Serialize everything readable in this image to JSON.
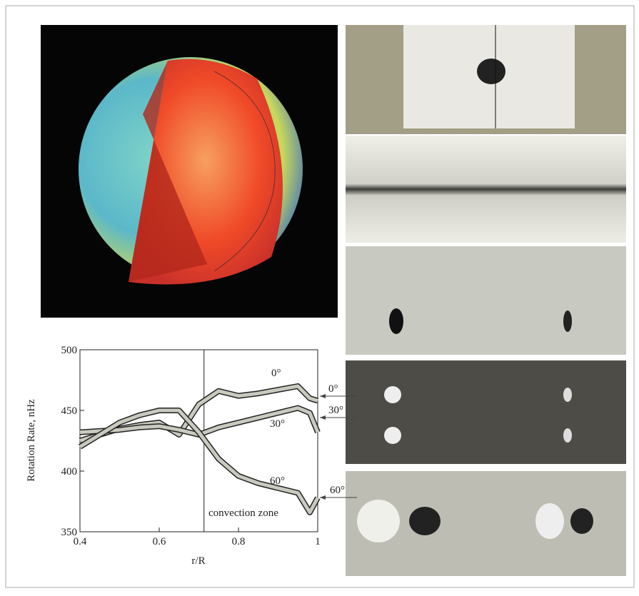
{
  "chart_data": {
    "type": "line",
    "y_label": "Rotation Rate, nHz",
    "x_label": "r/R",
    "annotation": "convection zone",
    "convection_boundary": 0.713,
    "x": [
      0.4,
      0.45,
      0.5,
      0.55,
      0.6,
      0.65,
      0.7,
      0.75,
      0.8,
      0.85,
      0.9,
      0.95,
      0.98,
      1
    ],
    "series": [
      {
        "name": "0°",
        "color": "#c9c9bf",
        "values": [
          425,
          430,
          435,
          438,
          440,
          430,
          455,
          466,
          462,
          464,
          467,
          470,
          460,
          458
        ]
      },
      {
        "name": "30°",
        "color": "#c9c9bf",
        "values": [
          432,
          433,
          434,
          436,
          437,
          434,
          430,
          436,
          440,
          444,
          448,
          452,
          448,
          432
        ]
      },
      {
        "name": "60°",
        "color": "#c9c9bf",
        "values": [
          420,
          430,
          440,
          446,
          450,
          450,
          432,
          410,
          396,
          390,
          386,
          382,
          366,
          378
        ]
      }
    ],
    "xlim": [
      0.4,
      1
    ],
    "ylim": [
      350,
      500
    ],
    "xticks": [
      0.4,
      0.6,
      0.8,
      1
    ],
    "yticks": [
      350,
      400,
      450,
      500
    ]
  }
}
